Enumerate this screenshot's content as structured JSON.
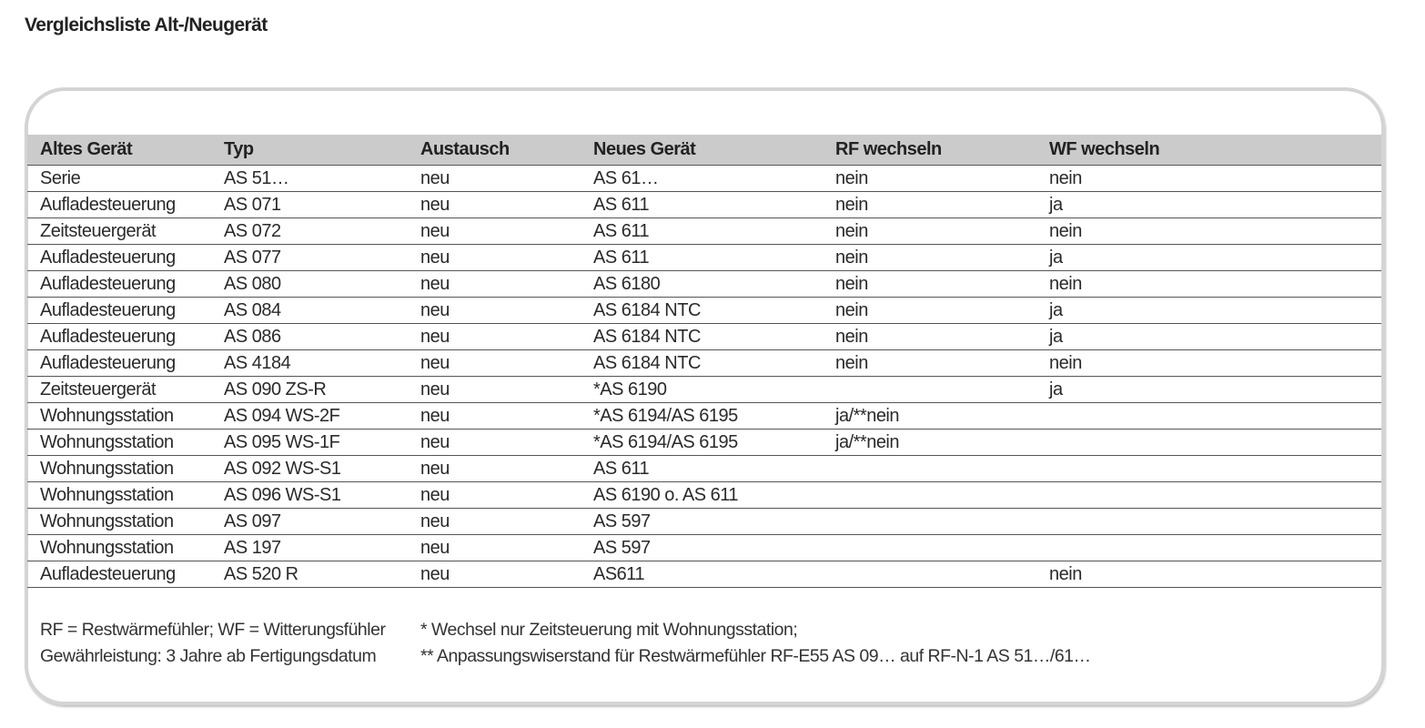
{
  "title": "Vergleichsliste Alt-/Neugerät",
  "table": {
    "headers": [
      "Altes Gerät",
      "Typ",
      "Austausch",
      "Neues Gerät",
      "RF wechseln",
      "WF wechseln"
    ],
    "rows": [
      [
        "Serie",
        "AS 51…",
        "neu",
        "AS 61…",
        "nein",
        "nein"
      ],
      [
        "Aufladesteuerung",
        "AS 071",
        "neu",
        "AS 611",
        "nein",
        "ja"
      ],
      [
        "Zeitsteuergerät",
        "AS 072",
        "neu",
        "AS 611",
        "nein",
        "nein"
      ],
      [
        "Aufladesteuerung",
        "AS 077",
        "neu",
        "AS 611",
        "nein",
        "ja"
      ],
      [
        "Aufladesteuerung",
        "AS 080",
        "neu",
        "AS 6180",
        "nein",
        "nein"
      ],
      [
        "Aufladesteuerung",
        "AS 084",
        "neu",
        "AS 6184 NTC",
        "nein",
        "ja"
      ],
      [
        "Aufladesteuerung",
        "AS 086",
        "neu",
        "AS 6184 NTC",
        "nein",
        "ja"
      ],
      [
        "Aufladesteuerung",
        "AS 4184",
        "neu",
        "AS 6184 NTC",
        "nein",
        "nein"
      ],
      [
        "Zeitsteuergerät",
        "AS 090 ZS-R",
        "neu",
        "*AS 6190",
        "",
        "ja"
      ],
      [
        "Wohnungsstation",
        "AS 094 WS-2F",
        "neu",
        "*AS 6194/AS 6195",
        "ja/**nein",
        ""
      ],
      [
        "Wohnungsstation",
        "AS 095 WS-1F",
        "neu",
        "*AS 6194/AS 6195",
        "ja/**nein",
        ""
      ],
      [
        "Wohnungsstation",
        "AS 092 WS-S1",
        "neu",
        "AS 611",
        "",
        ""
      ],
      [
        "Wohnungsstation",
        "AS 096 WS-S1",
        "neu",
        "AS 6190 o. AS 611",
        "",
        ""
      ],
      [
        "Wohnungsstation",
        "AS 097",
        "neu",
        "AS 597",
        "",
        ""
      ],
      [
        "Wohnungsstation",
        "AS 197",
        "neu",
        "AS 597",
        "",
        ""
      ],
      [
        "Aufladesteuerung",
        "AS 520 R",
        "neu",
        "AS611",
        "",
        "nein"
      ]
    ]
  },
  "notes": {
    "legend": "RF = Restwärmefühler; WF = Witterungsfühler",
    "warranty": "Gewährleistung: 3 Jahre ab Fertigungsdatum",
    "footnote1": "* Wechsel nur Zeitsteuerung mit Wohnungsstation;",
    "footnote2": "** Anpassungswiserstand für Restwärmefühler RF-E55 AS 09… auf RF-N-1 AS 51…/61…"
  }
}
